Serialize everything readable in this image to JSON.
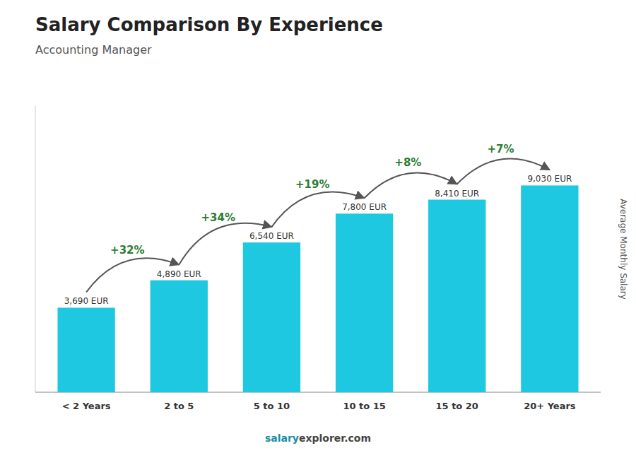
{
  "chart_data": {
    "type": "bar",
    "title": "Salary Comparison By Experience",
    "subtitle": "Accounting Manager",
    "ylabel": "Average Monthly Salary",
    "categories": [
      "< 2 Years",
      "2 to 5",
      "5 to 10",
      "10 to 15",
      "15 to 20",
      "20+ Years"
    ],
    "values": [
      3690,
      4890,
      6540,
      7800,
      8410,
      9030
    ],
    "value_labels": [
      "3,690 EUR",
      "4,890 EUR",
      "6,540 EUR",
      "7,800 EUR",
      "8,410 EUR",
      "9,030 EUR"
    ],
    "data_labels": true,
    "annotations": [
      "+32%",
      "+34%",
      "+19%",
      "+8%",
      "+7%"
    ],
    "footer": [
      "salary",
      "explorer.com"
    ],
    "color": "#1ec8e0",
    "ylim": [
      0,
      12500
    ],
    "tick_labels": "x",
    "grid": false
  }
}
